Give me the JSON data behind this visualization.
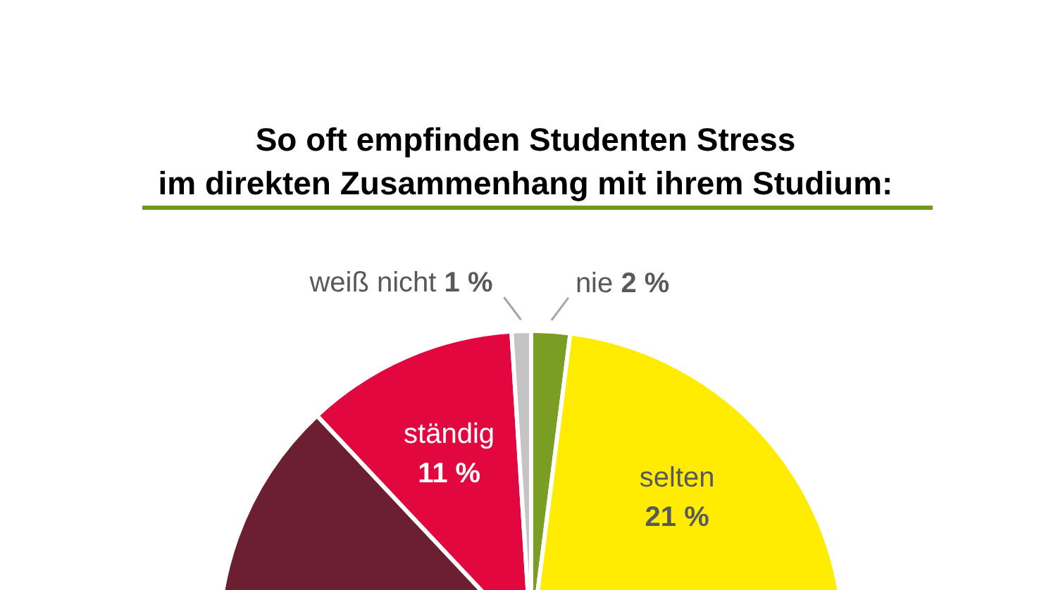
{
  "chart_data": {
    "type": "pie",
    "title": "So oft empfinden Studenten Stress\nim direkten Zusammenhang mit ihrem Studium:",
    "categories": [
      "nie",
      "selten",
      null,
      "ständig",
      "weiß nicht"
    ],
    "values": [
      2,
      21,
      65,
      11,
      1
    ],
    "colors": [
      "#7a9e24",
      "#ffec00",
      "#6b1f30",
      "#e2083f",
      "#c4c4c4"
    ],
    "value_labels": [
      "2 %",
      "21 %",
      null,
      "11 %",
      "1 %"
    ]
  }
}
